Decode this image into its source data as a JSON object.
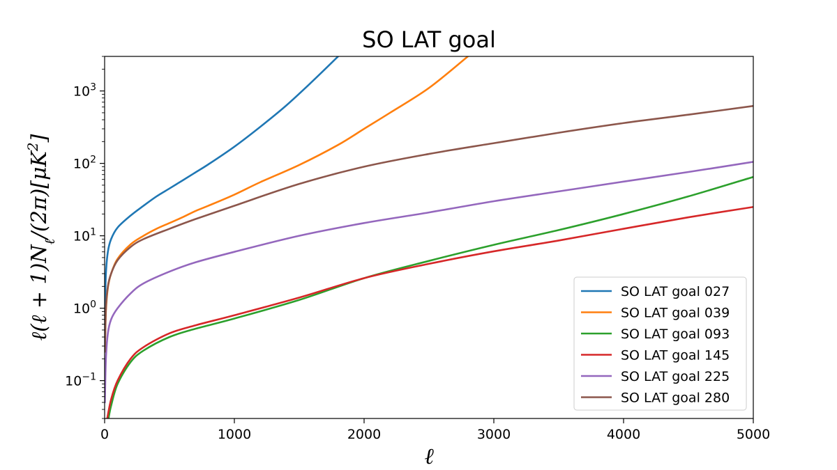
{
  "chart_data": {
    "type": "line",
    "title": "SO LAT goal",
    "xlabel": "ℓ",
    "ylabel": "ℓ(ℓ + 1)N_ℓ/(2π)[μK²]",
    "xlim": [
      0,
      5000
    ],
    "ylim": [
      0.03,
      3000
    ],
    "yscale": "log",
    "xticks": [
      0,
      1000,
      2000,
      3000,
      4000,
      5000
    ],
    "xtick_labels": [
      "0",
      "1000",
      "2000",
      "3000",
      "4000",
      "5000"
    ],
    "yticks": [
      0.1,
      1,
      10,
      100,
      1000
    ],
    "ytick_labels": [
      {
        "base": "10",
        "exp": "−1"
      },
      {
        "base": "10",
        "exp": "0"
      },
      {
        "base": "10",
        "exp": "1"
      },
      {
        "base": "10",
        "exp": "2"
      },
      {
        "base": "10",
        "exp": "3"
      }
    ],
    "legend_position": "lower-right",
    "grid": false,
    "series": [
      {
        "name": "SO LAT goal 027",
        "color": "#1f77b4",
        "x": [
          2,
          10,
          25,
          50,
          100,
          200,
          300,
          400,
          500,
          600,
          700,
          800,
          1000,
          1200,
          1400,
          1600,
          1800
        ],
        "y": [
          0.9,
          3.0,
          6.0,
          9.0,
          13,
          19,
          26,
          35,
          45,
          58,
          75,
          97,
          170,
          320,
          630,
          1350,
          3000
        ]
      },
      {
        "name": "SO LAT goal 039",
        "color": "#ff7f0e",
        "x": [
          2,
          10,
          25,
          50,
          100,
          200,
          300,
          400,
          500,
          600,
          700,
          800,
          1000,
          1200,
          1500,
          1800,
          2000,
          2200,
          2500,
          2800
        ],
        "y": [
          0.25,
          0.9,
          1.9,
          3.0,
          4.8,
          7.6,
          10,
          12.5,
          15,
          18,
          22,
          26,
          37,
          55,
          95,
          180,
          300,
          500,
          1100,
          3000
        ]
      },
      {
        "name": "SO LAT goal 093",
        "color": "#2ca02c",
        "x": [
          30,
          50,
          100,
          200,
          300,
          500,
          700,
          1000,
          1500,
          2000,
          2500,
          3000,
          3500,
          4000,
          4500,
          5000
        ],
        "y": [
          0.03,
          0.045,
          0.09,
          0.18,
          0.26,
          0.4,
          0.52,
          0.72,
          1.3,
          2.6,
          4.5,
          7.5,
          12,
          20,
          35,
          65
        ]
      },
      {
        "name": "SO LAT goal 145",
        "color": "#d62728",
        "x": [
          20,
          50,
          100,
          200,
          300,
          500,
          700,
          1000,
          1500,
          2000,
          2500,
          3000,
          3500,
          4000,
          4500,
          5000
        ],
        "y": [
          0.03,
          0.055,
          0.1,
          0.2,
          0.29,
          0.45,
          0.58,
          0.8,
          1.4,
          2.6,
          4.1,
          6.1,
          8.6,
          12.5,
          18,
          25
        ]
      },
      {
        "name": "SO LAT goal 225",
        "color": "#9467bd",
        "x": [
          2,
          10,
          25,
          50,
          100,
          200,
          300,
          500,
          700,
          1000,
          1500,
          2000,
          2500,
          3000,
          3500,
          4000,
          4500,
          5000
        ],
        "y": [
          0.05,
          0.2,
          0.45,
          0.7,
          1.0,
          1.6,
          2.2,
          3.2,
          4.3,
          6.0,
          10,
          15,
          21,
          30,
          41,
          56,
          76,
          105
        ]
      },
      {
        "name": "SO LAT goal 280",
        "color": "#8c564b",
        "x": [
          2,
          10,
          25,
          50,
          100,
          200,
          300,
          500,
          700,
          1000,
          1500,
          2000,
          2500,
          3000,
          3500,
          4000,
          4500,
          5000
        ],
        "y": [
          0.25,
          1.0,
          2.0,
          3.0,
          4.6,
          7.0,
          9.0,
          12.5,
          17,
          26,
          52,
          90,
          135,
          190,
          265,
          360,
          470,
          620
        ]
      }
    ]
  }
}
